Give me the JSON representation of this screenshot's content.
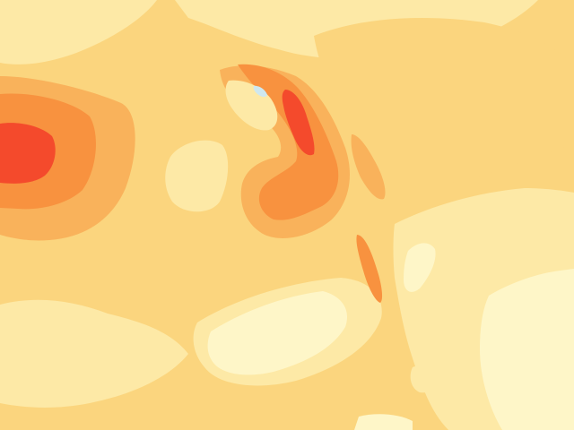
{
  "map": {
    "type": "filled-contour",
    "labels": [],
    "legend": null,
    "colors": {
      "level_0_palest": "#fef6c8",
      "level_1_pale": "#fdeaa8",
      "level_2_light": "#fbd57e",
      "level_3_mid": "#f9b25b",
      "level_4_orange": "#f8923f",
      "level_5_red_orange": "#f76a31",
      "level_6_red": "#f44a2c",
      "water_accent": "#cfe8ef"
    }
  }
}
